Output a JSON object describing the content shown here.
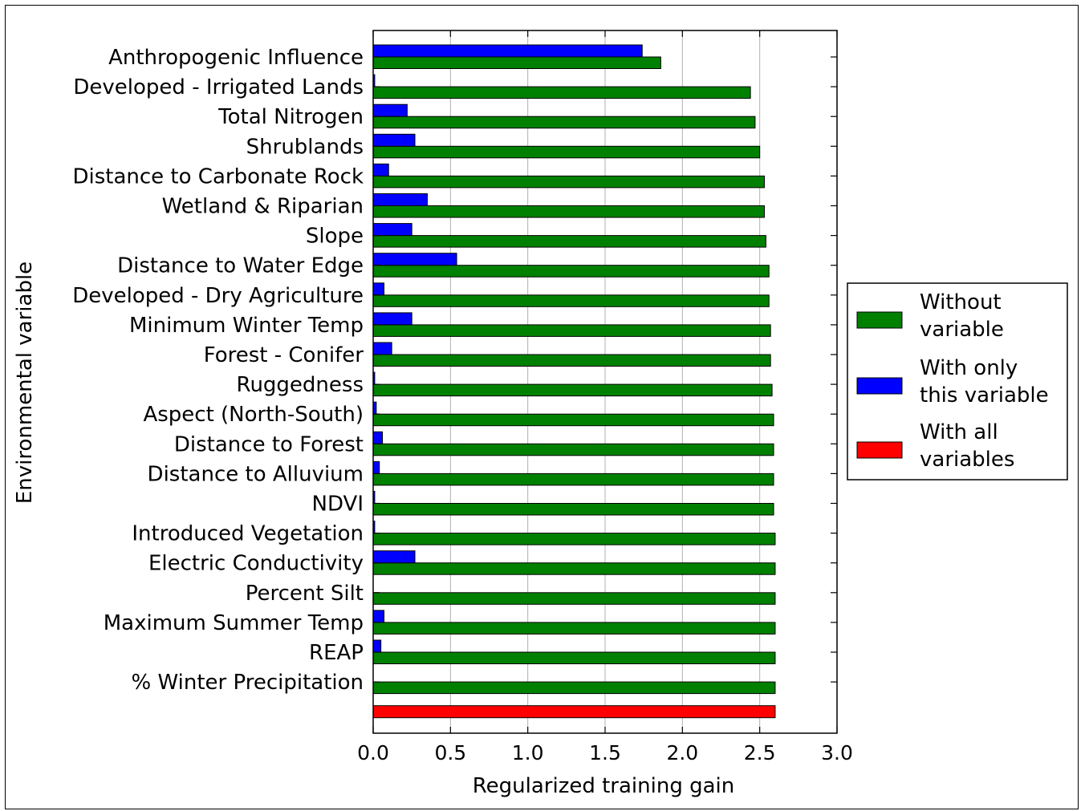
{
  "chart_data": {
    "type": "bar",
    "orientation": "horizontal",
    "title": "",
    "xlabel": "Regularized training gain",
    "ylabel": "Environmental variable",
    "xlim": [
      0.0,
      3.0
    ],
    "xticks": [
      "0.0",
      "0.5",
      "1.0",
      "1.5",
      "2.0",
      "2.5",
      "3.0"
    ],
    "grid": "vertical",
    "legend_position": "right",
    "categories": [
      "Anthropogenic Influence",
      "Developed - Irrigated Lands",
      "Total Nitrogen",
      "Shrublands",
      "Distance to Carbonate Rock",
      "Wetland & Riparian",
      "Slope",
      "Distance to Water Edge",
      "Developed - Dry Agriculture",
      "Minimum Winter Temp",
      "Forest - Conifer",
      "Ruggedness",
      "Aspect (North-South)",
      "Distance to Forest",
      "Distance to Alluvium",
      "NDVI",
      "Introduced Vegetation",
      "Electric Conductivity",
      "Percent Silt",
      "Maximum Summer Temp",
      "REAP",
      "% Winter Precipitation"
    ],
    "series": [
      {
        "name": "Without variable",
        "legend_label": [
          "Without",
          "variable"
        ],
        "color": "#008000",
        "values": [
          1.86,
          2.44,
          2.47,
          2.5,
          2.53,
          2.53,
          2.54,
          2.56,
          2.56,
          2.57,
          2.57,
          2.58,
          2.59,
          2.59,
          2.59,
          2.59,
          2.6,
          2.6,
          2.6,
          2.6,
          2.6,
          2.6
        ]
      },
      {
        "name": "With only this variable",
        "legend_label": [
          "With only",
          "this variable"
        ],
        "color": "#0000ff",
        "values": [
          1.74,
          0.01,
          0.22,
          0.27,
          0.1,
          0.35,
          0.25,
          0.54,
          0.07,
          0.25,
          0.12,
          0.01,
          0.02,
          0.06,
          0.04,
          0.01,
          0.01,
          0.27,
          0.0,
          0.07,
          0.05,
          0.0
        ]
      },
      {
        "name": "With all variables",
        "legend_label": [
          "With all",
          "variables"
        ],
        "color": "#ff0000",
        "value": 2.6
      }
    ]
  }
}
